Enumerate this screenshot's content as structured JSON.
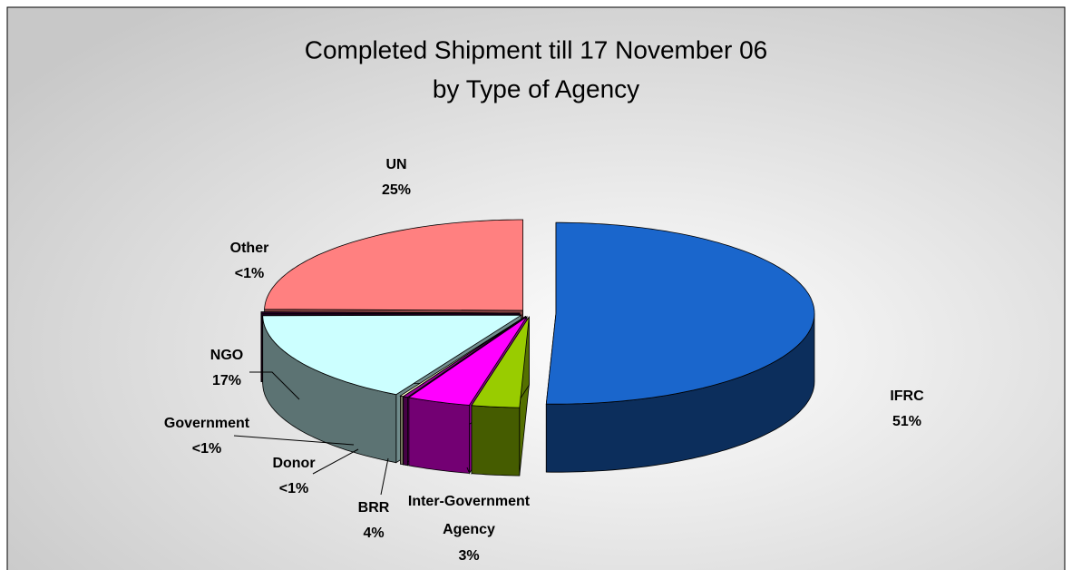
{
  "chart_data": {
    "type": "pie3d",
    "title": [
      "Completed Shipment till 17 November 06",
      "by Type of Agency"
    ],
    "categories": [
      "IFRC",
      "Inter-Government Agency",
      "BRR",
      "Donor",
      "Government",
      "NGO",
      "Other",
      "UN"
    ],
    "values": [
      51,
      3,
      4,
      0.3,
      0.2,
      17,
      0.3,
      25
    ],
    "value_labels": [
      "51%",
      "3%",
      "4%",
      "<1%",
      "<1%",
      "17%",
      "<1%",
      "25%"
    ],
    "colors": [
      "#1a66cc",
      "#99cc00",
      "#ff00ff",
      "#990099",
      "#ffffcc",
      "#ccffff",
      "#330033",
      "#ff8080"
    ]
  }
}
